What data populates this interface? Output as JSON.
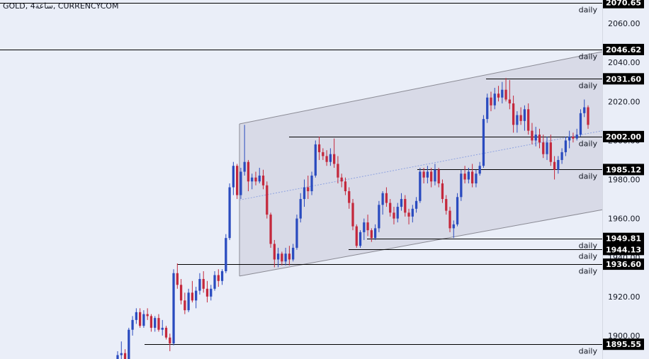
{
  "chart_data": {
    "type": "candlestick",
    "title": "GOLD, 4ساعة, CURRENCYCOM",
    "ylim": [
      1888,
      2072
    ],
    "y_ticks": [
      1900,
      1920,
      1940,
      1960,
      1980,
      2000,
      2020,
      2040,
      2060
    ],
    "y_tick_labels": [
      "1900.00",
      "1920.00",
      "1940.00",
      "1960.00",
      "1980.00",
      "2000.00",
      "2020.00",
      "2040.00",
      "2060.00"
    ],
    "colors": {
      "background": "#eaeef8",
      "up": "#2a4bbf",
      "down": "#c4283c",
      "level_line": "#000000",
      "channel_fill": "#c8cad8",
      "channel_border": "#8a8a94",
      "channel_mid": "#8fa3e0",
      "price_label_bg": "#000000",
      "price_label_text": "#ffffff"
    },
    "levels": [
      {
        "value": 2070.65,
        "label": "2070.65",
        "tag": "daily"
      },
      {
        "value": 2046.62,
        "label": "2046.62",
        "tag": "daily"
      },
      {
        "value": 2031.6,
        "label": "2031.60",
        "tag": "daily"
      },
      {
        "value": 2002.0,
        "label": "2002.00",
        "tag": "daily"
      },
      {
        "value": 1985.12,
        "label": "1985.12",
        "tag": "daily"
      },
      {
        "value": 1949.81,
        "label": "1949.81",
        "tag": "daily"
      },
      {
        "value": 1944.13,
        "label": "1944.13",
        "tag": "daily"
      },
      {
        "value": 1936.6,
        "label": "1936.60",
        "tag": "daily"
      },
      {
        "value": 1895.55,
        "label": "1895.55",
        "tag": "daily"
      }
    ],
    "channel": {
      "upper_start": 2008.5,
      "upper_end": 2045.5,
      "lower_start": 1930.5,
      "lower_end": 1964.5,
      "mid_start": 1969.5,
      "mid_end": 2005.0
    },
    "candles": [
      [
        1887,
        1892,
        1885,
        1890
      ],
      [
        1890,
        1897,
        1888,
        1891
      ],
      [
        1891,
        1893,
        1885,
        1887
      ],
      [
        1887,
        1904,
        1886,
        1903
      ],
      [
        1903,
        1910,
        1900,
        1908
      ],
      [
        1908,
        1914,
        1906,
        1912
      ],
      [
        1912,
        1914,
        1904,
        1905
      ],
      [
        1905,
        1913,
        1904,
        1911
      ],
      [
        1911,
        1914,
        1908,
        1910
      ],
      [
        1910,
        1911,
        1902,
        1904
      ],
      [
        1904,
        1910,
        1902,
        1909
      ],
      [
        1909,
        1911,
        1902,
        1903
      ],
      [
        1903,
        1908,
        1900,
        1904
      ],
      [
        1904,
        1905,
        1898,
        1899
      ],
      [
        1899,
        1901,
        1892,
        1896
      ],
      [
        1896,
        1934,
        1895,
        1932
      ],
      [
        1932,
        1937,
        1924,
        1926
      ],
      [
        1926,
        1929,
        1916,
        1918
      ],
      [
        1918,
        1922,
        1911,
        1913
      ],
      [
        1913,
        1924,
        1912,
        1922
      ],
      [
        1922,
        1928,
        1917,
        1918
      ],
      [
        1918,
        1925,
        1914,
        1923
      ],
      [
        1923,
        1932,
        1921,
        1929
      ],
      [
        1929,
        1933,
        1922,
        1924
      ],
      [
        1924,
        1928,
        1917,
        1920
      ],
      [
        1920,
        1926,
        1918,
        1924
      ],
      [
        1924,
        1933,
        1923,
        1931
      ],
      [
        1931,
        1934,
        1925,
        1928
      ],
      [
        1928,
        1934,
        1926,
        1933
      ],
      [
        1933,
        1952,
        1932,
        1950
      ],
      [
        1950,
        1978,
        1949,
        1976
      ],
      [
        1976,
        1989,
        1972,
        1987
      ],
      [
        1987,
        1988,
        1970,
        1972
      ],
      [
        1972,
        1986,
        1970,
        1984
      ],
      [
        1984,
        2008,
        1982,
        1989
      ],
      [
        1989,
        1990,
        1974,
        1979
      ],
      [
        1979,
        1983,
        1975,
        1981
      ],
      [
        1981,
        1984,
        1977,
        1979
      ],
      [
        1979,
        1986,
        1978,
        1982
      ],
      [
        1982,
        1985,
        1975,
        1977
      ],
      [
        1977,
        1979,
        1960,
        1962
      ],
      [
        1962,
        1963,
        1945,
        1947
      ],
      [
        1947,
        1949,
        1935,
        1939
      ],
      [
        1939,
        1945,
        1935,
        1942
      ],
      [
        1942,
        1943,
        1936,
        1938
      ],
      [
        1938,
        1945,
        1936,
        1942
      ],
      [
        1942,
        1946,
        1936,
        1939
      ],
      [
        1939,
        1947,
        1938,
        1945
      ],
      [
        1945,
        1962,
        1944,
        1960
      ],
      [
        1960,
        1973,
        1958,
        1970
      ],
      [
        1970,
        1980,
        1966,
        1976
      ],
      [
        1976,
        1982,
        1970,
        1974
      ],
      [
        1974,
        1984,
        1972,
        1982
      ],
      [
        1982,
        2000,
        1981,
        1998
      ],
      [
        1998,
        2002,
        1990,
        1994
      ],
      [
        1994,
        1996,
        1990,
        1992
      ],
      [
        1992,
        1995,
        1987,
        1989
      ],
      [
        1989,
        1996,
        1987,
        1993
      ],
      [
        1993,
        2001,
        1986,
        1988
      ],
      [
        1988,
        1992,
        1978,
        1981
      ],
      [
        1981,
        1983,
        1976,
        1979
      ],
      [
        1979,
        1981,
        1972,
        1974
      ],
      [
        1974,
        1976,
        1965,
        1968
      ],
      [
        1968,
        1970,
        1954,
        1956
      ],
      [
        1956,
        1957,
        1945,
        1946
      ],
      [
        1946,
        1954,
        1945,
        1953
      ],
      [
        1953,
        1960,
        1949,
        1958
      ],
      [
        1958,
        1962,
        1951,
        1954
      ],
      [
        1954,
        1955,
        1948,
        1950
      ],
      [
        1950,
        1957,
        1949,
        1955
      ],
      [
        1955,
        1969,
        1953,
        1967
      ],
      [
        1967,
        1974,
        1962,
        1973
      ],
      [
        1973,
        1976,
        1966,
        1968
      ],
      [
        1968,
        1970,
        1961,
        1963
      ],
      [
        1963,
        1966,
        1957,
        1960
      ],
      [
        1960,
        1968,
        1958,
        1966
      ],
      [
        1966,
        1973,
        1964,
        1970
      ],
      [
        1970,
        1972,
        1961,
        1963
      ],
      [
        1963,
        1965,
        1957,
        1961
      ],
      [
        1961,
        1967,
        1958,
        1965
      ],
      [
        1965,
        1971,
        1963,
        1969
      ],
      [
        1969,
        1986,
        1968,
        1984
      ],
      [
        1984,
        1986,
        1978,
        1981
      ],
      [
        1981,
        1987,
        1978,
        1984
      ],
      [
        1984,
        1986,
        1976,
        1979
      ],
      [
        1979,
        1988,
        1977,
        1985
      ],
      [
        1985,
        1986,
        1976,
        1978
      ],
      [
        1978,
        1980,
        1968,
        1970
      ],
      [
        1970,
        1972,
        1962,
        1964
      ],
      [
        1964,
        1966,
        1953,
        1955
      ],
      [
        1955,
        1959,
        1950,
        1957
      ],
      [
        1957,
        1973,
        1956,
        1971
      ],
      [
        1971,
        1985,
        1969,
        1983
      ],
      [
        1983,
        1987,
        1978,
        1980
      ],
      [
        1980,
        1986,
        1978,
        1984
      ],
      [
        1984,
        1988,
        1976,
        1978
      ],
      [
        1978,
        1985,
        1976,
        1983
      ],
      [
        1983,
        1989,
        1982,
        1987
      ],
      [
        1987,
        2013,
        1986,
        2011
      ],
      [
        2011,
        2024,
        2009,
        2022
      ],
      [
        2022,
        2025,
        2015,
        2018
      ],
      [
        2018,
        2027,
        2016,
        2024
      ],
      [
        2024,
        2028,
        2020,
        2022
      ],
      [
        2022,
        2030,
        2019,
        2026
      ],
      [
        2026,
        2032,
        2020,
        2021
      ],
      [
        2021,
        2031,
        2016,
        2019
      ],
      [
        2019,
        2023,
        2004,
        2008
      ],
      [
        2008,
        2015,
        2004,
        2013
      ],
      [
        2013,
        2017,
        2008,
        2010
      ],
      [
        2010,
        2018,
        2005,
        2016
      ],
      [
        2016,
        2019,
        2003,
        2005
      ],
      [
        2005,
        2009,
        1998,
        2000
      ],
      [
        2000,
        2007,
        1997,
        2003
      ],
      [
        2003,
        2006,
        1996,
        1999
      ],
      [
        1999,
        2003,
        1991,
        1993
      ],
      [
        1993,
        2002,
        1990,
        1999
      ],
      [
        1999,
        2003,
        1987,
        1989
      ],
      [
        1989,
        1992,
        1980,
        1985
      ],
      [
        1985,
        1992,
        1983,
        1990
      ],
      [
        1990,
        1996,
        1988,
        1994
      ],
      [
        1994,
        2002,
        1992,
        2000
      ],
      [
        2000,
        2005,
        1996,
        2002
      ],
      [
        2002,
        2004,
        1999,
        2001
      ],
      [
        2001,
        2006,
        2000,
        2003
      ],
      [
        2003,
        2016,
        2002,
        2014
      ],
      [
        2014,
        2021,
        2012,
        2017
      ],
      [
        2017,
        2018,
        2006,
        2008
      ]
    ]
  }
}
